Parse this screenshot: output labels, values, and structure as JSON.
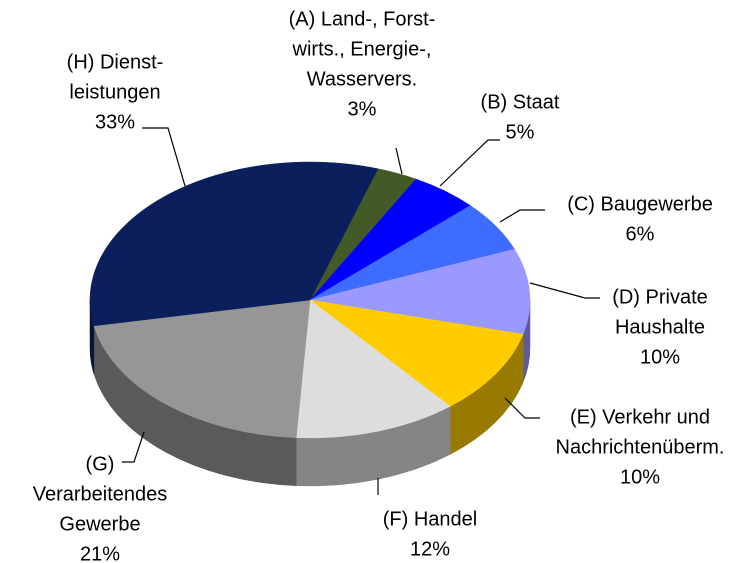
{
  "chart_data": {
    "type": "pie",
    "categories": [
      [
        "(A) Land-, Forst-",
        "wirts., Energie-,",
        "Wasservers."
      ],
      [
        "(B) Staat"
      ],
      [
        "(C) Baugewerbe"
      ],
      [
        "(D) Private",
        "Haushalte"
      ],
      [
        "(E) Verkehr  und",
        "Nachrichtenüberm."
      ],
      [
        "(F) Handel"
      ],
      [
        "(G)",
        "Verarbeitendes",
        "Gewerbe"
      ],
      [
        "(H) Dienst-",
        "leistungen"
      ]
    ],
    "values": [
      3,
      5,
      6,
      10,
      10,
      12,
      21,
      33
    ],
    "value_labels": [
      "3%",
      "5%",
      "6%",
      "10%",
      "10%",
      "12%",
      "21%",
      "33%"
    ],
    "colors": [
      "#445a26",
      "#0000ff",
      "#3d6cff",
      "#9999ff",
      "#ffcc00",
      "#dddddd",
      "#969696",
      "#0a1f5c"
    ]
  }
}
